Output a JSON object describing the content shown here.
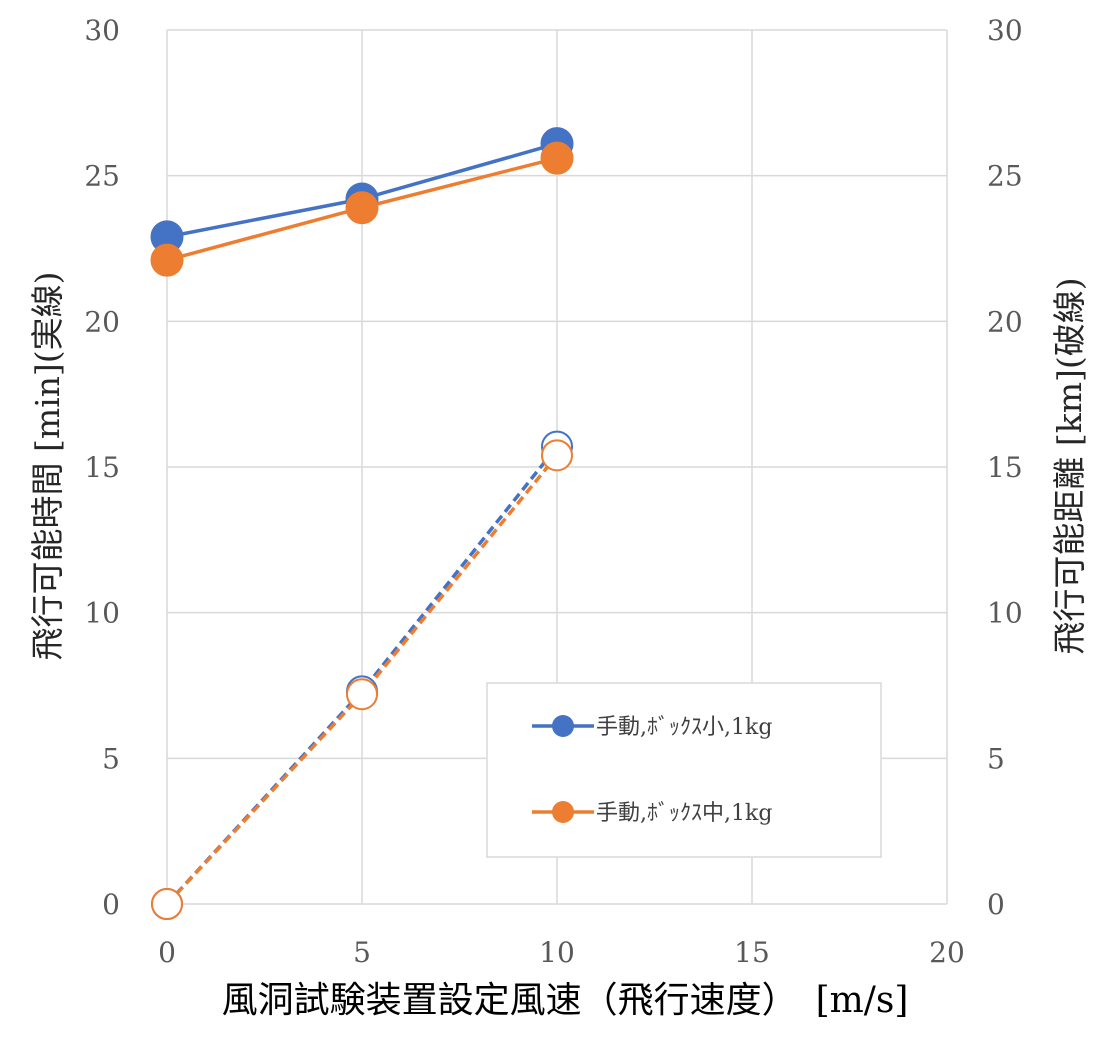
{
  "chart_data": {
    "type": "line",
    "x": [
      0,
      5,
      10
    ],
    "xlabel": "風洞試験装置設定風速（飛行速度）　[m/s]",
    "ylabel_left": "飛行可能時間 [min](実線)",
    "ylabel_right": "飛行可能距離 [km](破線)",
    "xlim": [
      0,
      20
    ],
    "ylim_left": [
      0,
      30
    ],
    "ylim_right": [
      0,
      30
    ],
    "x_ticks": [
      "0",
      "5",
      "10",
      "15",
      "20"
    ],
    "y_ticks_left": [
      "0",
      "5",
      "10",
      "15",
      "20",
      "25",
      "30"
    ],
    "y_ticks_right": [
      "0",
      "5",
      "10",
      "15",
      "20",
      "25",
      "30"
    ],
    "grid": true,
    "legend_position": "lower-right",
    "series": [
      {
        "name": "手動,ﾎﾞｯｸｽ小,1kg",
        "axis": "left",
        "style": "solid",
        "marker": "filled",
        "color": "#4472C4",
        "values": [
          22.9,
          24.2,
          26.1
        ]
      },
      {
        "name": "手動,ﾎﾞｯｸｽ中,1kg",
        "axis": "left",
        "style": "solid",
        "marker": "filled",
        "color": "#ED7D31",
        "values": [
          22.1,
          23.9,
          25.6
        ]
      },
      {
        "axis": "right",
        "style": "dashed",
        "marker": "open",
        "color": "#4472C4",
        "values": [
          0,
          7.3,
          15.7
        ]
      },
      {
        "axis": "right",
        "style": "dashed",
        "marker": "open",
        "color": "#ED7D31",
        "values": [
          0,
          7.2,
          15.4
        ]
      }
    ]
  }
}
